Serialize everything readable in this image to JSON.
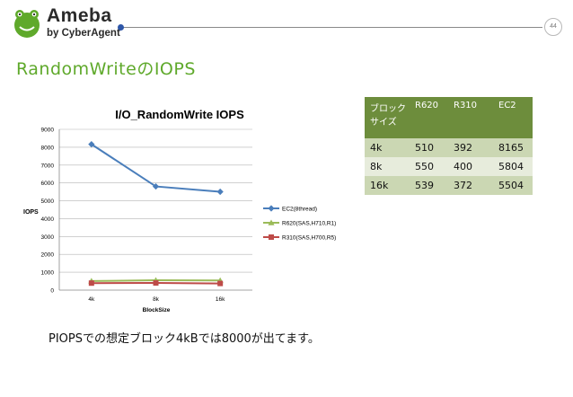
{
  "brand": {
    "name": "Ameba",
    "subtitle": "by CyberAgent",
    "color": "#5fa92b"
  },
  "page_number": "44",
  "slide_title": "RandomWriteのIOPS",
  "table": {
    "headers": [
      "ブロックサイズ",
      "R620",
      "R310",
      "EC2"
    ],
    "rows": [
      [
        "4k",
        "510",
        "392",
        "8165"
      ],
      [
        "8k",
        "550",
        "400",
        "5804"
      ],
      [
        "16k",
        "539",
        "372",
        "5504"
      ]
    ],
    "header_color": "#6d8d3c"
  },
  "note": "PIOPSでの想定ブロック4kBでは8000が出てます。",
  "chart_data": {
    "type": "line",
    "title": "I/O_RandomWrite IOPS",
    "xlabel": "BlockSize",
    "ylabel": "IOPS",
    "categories": [
      "4k",
      "8k",
      "16k"
    ],
    "ylim": [
      0,
      9000
    ],
    "yticks": [
      "0",
      "1000",
      "2000",
      "3000",
      "4000",
      "5000",
      "6000",
      "7000",
      "8000",
      "9000"
    ],
    "grid": true,
    "legend_position": "right",
    "series": [
      {
        "name": "EC2(8thread)",
        "values": [
          8165,
          5804,
          5504
        ],
        "color": "#4a7ebb",
        "marker": "diamond"
      },
      {
        "name": "R620(SAS,H710,R1)",
        "values": [
          510,
          550,
          539
        ],
        "color": "#9bbb59",
        "marker": "triangle"
      },
      {
        "name": "R310(SAS,H700,R5)",
        "values": [
          392,
          400,
          372
        ],
        "color": "#be4b48",
        "marker": "square"
      }
    ]
  }
}
